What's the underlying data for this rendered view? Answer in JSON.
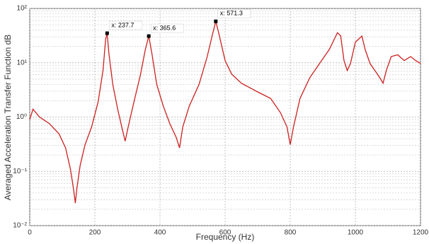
{
  "chart_data": {
    "type": "line",
    "xlabel": "Frequency (Hz)",
    "ylabel": "Averaged Acceleration Transfer Function dB",
    "x": [
      0,
      10,
      30,
      60,
      90,
      110,
      125,
      135,
      140,
      145,
      155,
      170,
      190,
      210,
      225,
      233,
      237.7,
      243,
      255,
      270,
      285,
      293,
      300,
      320,
      340,
      355,
      365.6,
      375,
      390,
      410,
      430,
      450,
      460,
      470,
      490,
      520,
      545,
      560,
      571.3,
      580,
      600,
      620,
      650,
      700,
      740,
      770,
      790,
      800,
      810,
      830,
      860,
      890,
      920,
      945,
      955,
      965,
      975,
      985,
      1000,
      1020,
      1030,
      1045,
      1060,
      1075,
      1085,
      1095,
      1110,
      1130,
      1150,
      1170,
      1185,
      1200
    ],
    "series": [
      {
        "color": "#cc2020",
        "values": [
          0.9,
          1.4,
          1.0,
          0.76,
          0.49,
          0.27,
          0.11,
          0.045,
          0.026,
          0.05,
          0.13,
          0.31,
          0.66,
          1.9,
          7.2,
          27,
          35,
          15,
          4,
          1.4,
          0.57,
          0.36,
          0.57,
          1.9,
          6,
          17.6,
          31,
          15,
          4,
          1.6,
          0.76,
          0.42,
          0.27,
          0.66,
          1.6,
          4,
          13,
          31,
          58,
          36,
          11,
          6.2,
          4.2,
          2.9,
          2.2,
          1.2,
          0.66,
          0.31,
          0.66,
          2.2,
          5.3,
          9.7,
          17.6,
          36,
          31,
          11,
          7.2,
          9.7,
          24,
          31,
          17.6,
          9.7,
          7.2,
          5.3,
          4.2,
          7.2,
          13,
          14,
          11,
          13,
          11,
          9.7
        ]
      }
    ],
    "annotations": [
      {
        "text": "x: 237.7",
        "x": 237.7,
        "y": 35
      },
      {
        "text": "x: 365.6",
        "x": 365.6,
        "y": 31
      },
      {
        "text": "x: 571.3",
        "x": 571.3,
        "y": 58
      }
    ],
    "xlim": [
      0,
      1200
    ],
    "xticks": [
      0,
      200,
      400,
      600,
      800,
      1000,
      1200
    ],
    "ylim": [
      0.01,
      100
    ],
    "ylog": true,
    "yticks": [
      {
        "value": 0.01,
        "label": "10⁻²"
      },
      {
        "value": 0.1,
        "label": "10⁻¹"
      },
      {
        "value": 1,
        "label": "10⁰"
      },
      {
        "value": 10,
        "label": "10¹"
      },
      {
        "value": 100,
        "label": "10²"
      }
    ],
    "grid": true,
    "minor_grid": true
  }
}
